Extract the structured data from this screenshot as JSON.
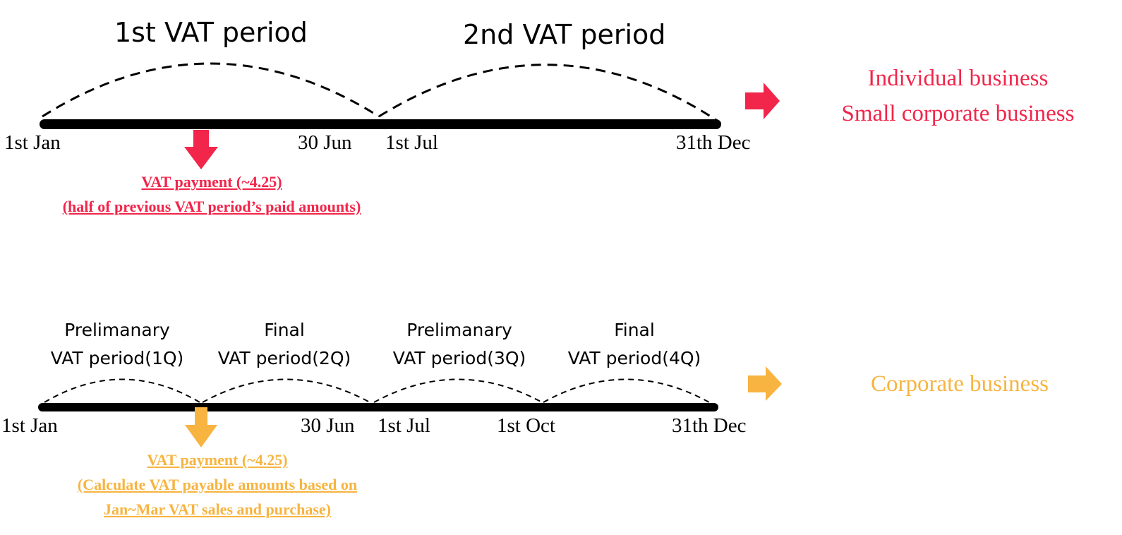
{
  "top": {
    "period1_label": "1st VAT period",
    "period2_label": "2nd VAT period",
    "dates": {
      "start": "1st Jan",
      "mid_end": "30 Jun",
      "mid_start": "1st Jul",
      "end": "31th Dec"
    },
    "payment_line1": "VAT payment (~4.25)",
    "payment_line2": "(half of  previous VAT period’s paid amounts)",
    "business_line1": "Individual business",
    "business_line2": "Small corporate business",
    "color": "#f2254a"
  },
  "bottom": {
    "periods": [
      {
        "line1": "Prelimanary",
        "line2": "VAT period(1Q)"
      },
      {
        "line1": "Final",
        "line2": "VAT period(2Q)"
      },
      {
        "line1": "Prelimanary",
        "line2": "VAT period(3Q)"
      },
      {
        "line1": "Final",
        "line2": "VAT period(4Q)"
      }
    ],
    "dates": {
      "start": "1st Jan",
      "mid_end": "30 Jun",
      "mid_start": "1st Jul",
      "q4_start": "1st Oct",
      "end": "31th Dec"
    },
    "payment_line1": "VAT payment (~4.25)",
    "payment_line2": "(Calculate VAT payable amounts  based on",
    "payment_line3": "Jan~Mar VAT sales and purchase)",
    "business_line1": "Corporate business",
    "color": "#f7b440"
  }
}
